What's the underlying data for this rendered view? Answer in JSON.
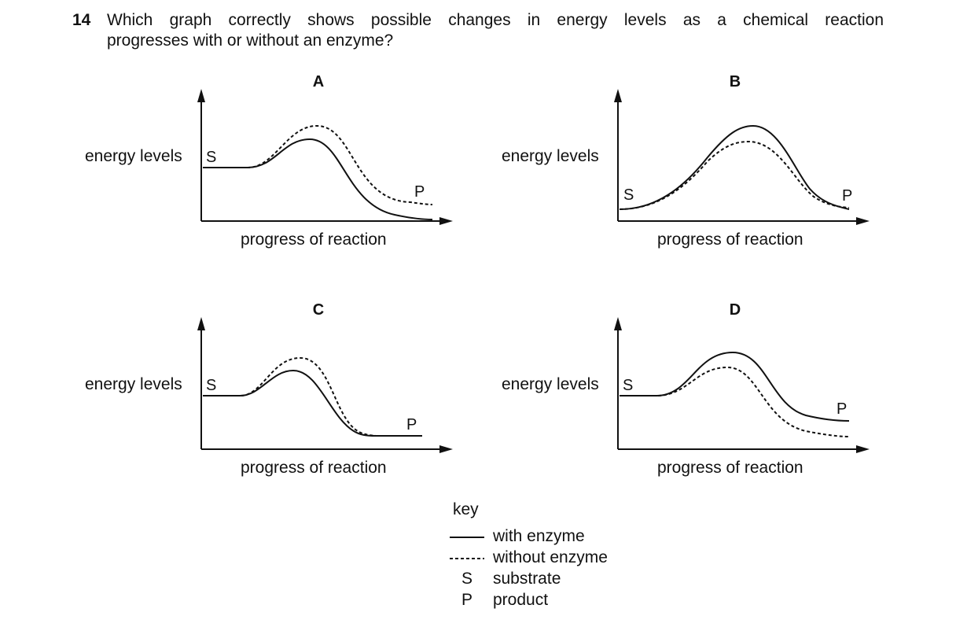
{
  "question": {
    "number": "14",
    "line1": "Which graph correctly shows possible changes in energy levels as a chemical reaction",
    "line2": "progresses with or without an enzyme?"
  },
  "graphs": [
    {
      "id": "A",
      "title": "A",
      "ylabel": "energy levels",
      "xlabel": "progress of reaction",
      "start_label": "S",
      "end_label": "P"
    },
    {
      "id": "B",
      "title": "B",
      "ylabel": "energy levels",
      "xlabel": "progress of reaction",
      "start_label": "S",
      "end_label": "P"
    },
    {
      "id": "C",
      "title": "C",
      "ylabel": "energy levels",
      "xlabel": "progress of reaction",
      "start_label": "S",
      "end_label": "P"
    },
    {
      "id": "D",
      "title": "D",
      "ylabel": "energy levels",
      "xlabel": "progress of reaction",
      "start_label": "S",
      "end_label": "P"
    }
  ],
  "key": {
    "title": "key",
    "items": [
      {
        "symbol": "solid-line",
        "label": "with enzyme"
      },
      {
        "symbol": "dashed-line",
        "label": "without enzyme"
      },
      {
        "symbol": "S",
        "label": "substrate"
      },
      {
        "symbol": "P",
        "label": "product"
      }
    ]
  },
  "colors": {
    "ink": "#111111",
    "background": "#ffffff"
  }
}
